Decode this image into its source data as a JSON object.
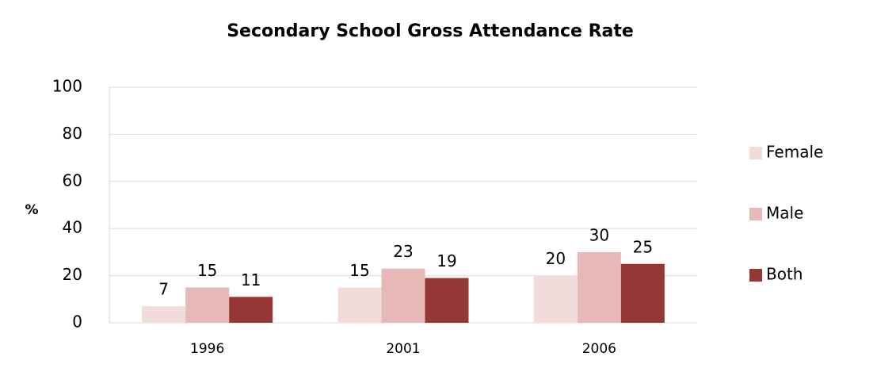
{
  "chart_data": {
    "type": "bar",
    "title": "Secondary School Gross Attendance Rate",
    "y_label": "%",
    "categories": [
      "1996",
      "2001",
      "2006"
    ],
    "series": [
      {
        "name": "Female",
        "color": "#f2dcdb",
        "values": [
          7,
          15,
          20
        ]
      },
      {
        "name": "Male",
        "color": "#e6b9b8",
        "values": [
          15,
          23,
          30
        ]
      },
      {
        "name": "Both",
        "color": "#953735",
        "values": [
          11,
          19,
          25
        ]
      }
    ],
    "ylim": [
      0,
      100
    ],
    "yticks": [
      0,
      20,
      40,
      60,
      80,
      100
    ],
    "grid": true,
    "legend": "right"
  }
}
